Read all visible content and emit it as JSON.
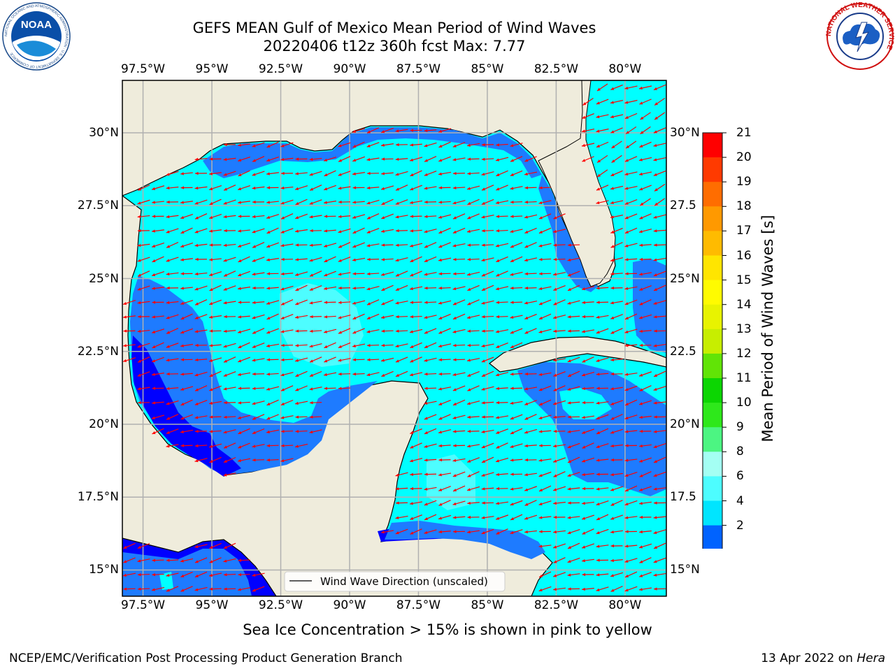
{
  "title_line1": "GEFS MEAN Gulf of Mexico Mean Period of Wind Waves",
  "title_line2": "20220406 t12z 360h fcst   Max: 7.77",
  "lon_ticks": [
    "97.5°W",
    "95°W",
    "92.5°W",
    "90°W",
    "87.5°W",
    "85°W",
    "82.5°W",
    "80°W"
  ],
  "lat_ticks_left": [
    "30°N",
    "27.5°N",
    "25°N",
    "22.5°N",
    "20°N",
    "17.5°N",
    "15°N"
  ],
  "lat_ticks_right": [
    "30°N",
    "27.5",
    "25°N",
    "22.5",
    "20°N",
    "17.5",
    "15°N"
  ],
  "legend_label": "Wind Wave Direction (unscaled)",
  "colorbar": {
    "label": "Mean Period of Wind Waves [s]",
    "ticks": [
      "21",
      "20",
      "19",
      "18",
      "17",
      "16",
      "15",
      "14",
      "13",
      "12",
      "11",
      "10",
      "9",
      "8",
      "6",
      "4",
      "2"
    ],
    "levels": [
      2,
      4,
      6,
      8,
      9,
      10,
      11,
      12,
      13,
      14,
      15,
      16,
      17,
      18,
      19,
      20,
      21
    ],
    "colors": [
      "#0063ff",
      "#00e5ff",
      "#4dfdff",
      "#a4fff3",
      "#4cf582",
      "#2ee81b",
      "#0cd602",
      "#61e406",
      "#c7ee00",
      "#e8f300",
      "#fffb00",
      "#ffe500",
      "#ffbb00",
      "#ff9900",
      "#ff6d00",
      "#ff3a00",
      "#ff0000"
    ],
    "under_color": "#0000ff"
  },
  "seaice_note": "Sea Ice Concentration > 15% is shown in pink to yellow",
  "footer_left": "NCEP/EMC/Verification Post Processing Product Generation Branch",
  "footer_date": "13 Apr 2022 on",
  "footer_machine": "Hera",
  "map": {
    "lon_range": [
      -98.25,
      -78.5
    ],
    "lat_range": [
      14.1,
      31.8
    ],
    "land_color": "#efecdc",
    "arrow_color": "#ff0000"
  },
  "logos": {
    "left": "NOAA",
    "left_ring": "NATIONAL OCEANIC AND ATMOSPHERIC ADMINISTRATION · U.S. DEPARTMENT OF COMMERCE",
    "right_ring": "NATIONAL WEATHER SERVICE"
  }
}
